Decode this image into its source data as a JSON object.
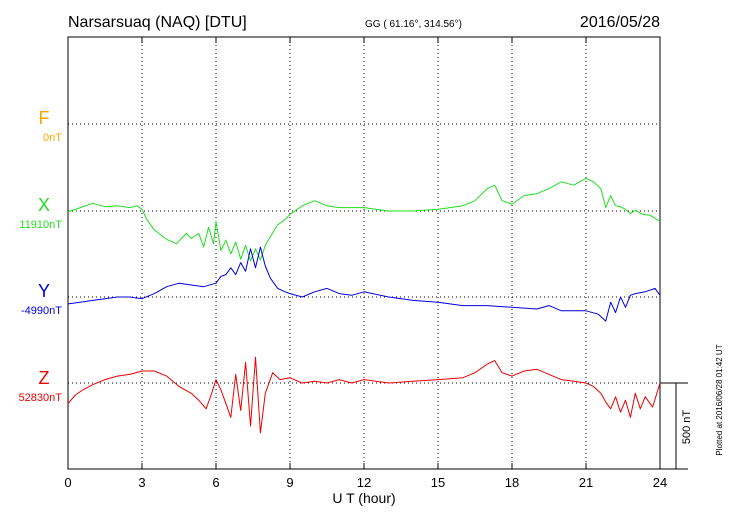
{
  "header": {
    "station": "Narsarsuaq (NAQ)  [DTU]",
    "coords": "GG ( 61.16°, 314.56°)",
    "date": "2016/05/28"
  },
  "plotted_note": "Plotted at 2016/06/28 01:42 UT",
  "scale_label": "500 nT",
  "chart_data": {
    "type": "line",
    "title": "Narsarsuaq (NAQ)  [DTU]",
    "xlabel": "U T (hour)",
    "ylabel": "",
    "xlim": [
      0,
      24
    ],
    "x_ticks": [
      0,
      3,
      6,
      9,
      12,
      15,
      18,
      21,
      24
    ],
    "x_tick_labels": [
      "0",
      "3",
      "6",
      "9",
      "12",
      "15",
      "18",
      "21",
      "24"
    ],
    "grid": true,
    "y_units": "nT offset from baseline (each panel scaled 500 nT per 74 px)",
    "series": [
      {
        "name": "F",
        "baseline_label": "0nT",
        "color": "#ffa500",
        "x": [],
        "values": []
      },
      {
        "name": "X",
        "baseline_label": "11910nT",
        "color": "#22dd22",
        "x": [
          0,
          0.5,
          1,
          1.5,
          2,
          2.5,
          2.8,
          3,
          3.2,
          3.5,
          4,
          4.4,
          4.8,
          5,
          5.3,
          5.5,
          5.7,
          5.9,
          6,
          6.2,
          6.4,
          6.6,
          6.8,
          7,
          7.2,
          7.4,
          7.6,
          7.8,
          8,
          8.2,
          8.5,
          8.8,
          9,
          9.5,
          10,
          10.5,
          11,
          12,
          13,
          14,
          15,
          15.5,
          16,
          16.5,
          17,
          17.3,
          17.6,
          18,
          18.5,
          19,
          19.5,
          20,
          20.5,
          21,
          21.3,
          21.6,
          21.8,
          22,
          22.2,
          22.4,
          22.6,
          22.8,
          23,
          23.3,
          23.6,
          24
        ],
        "values": [
          -5,
          20,
          45,
          25,
          30,
          20,
          30,
          10,
          -50,
          -110,
          -165,
          -190,
          -130,
          -160,
          -130,
          -210,
          -95,
          -190,
          -60,
          -230,
          -170,
          -250,
          -180,
          -280,
          -200,
          -290,
          -220,
          -285,
          -200,
          -150,
          -80,
          -50,
          -20,
          30,
          60,
          30,
          20,
          20,
          0,
          0,
          10,
          20,
          30,
          60,
          130,
          150,
          60,
          40,
          90,
          100,
          130,
          170,
          150,
          190,
          170,
          130,
          20,
          90,
          30,
          25,
          10,
          -15,
          5,
          -20,
          -25,
          -60
        ]
      },
      {
        "name": "Y",
        "baseline_label": "-4990nT",
        "color": "#0000dd",
        "x": [
          0,
          0.5,
          1,
          1.5,
          2,
          2.5,
          3,
          3.5,
          4,
          4.5,
          5,
          5.5,
          6,
          6.2,
          6.4,
          6.6,
          6.8,
          7,
          7.2,
          7.4,
          7.6,
          7.8,
          8,
          8.2,
          8.5,
          8.8,
          9,
          9.5,
          10,
          10.5,
          11,
          11.5,
          12,
          13,
          14,
          15,
          16,
          17,
          18,
          19,
          19.5,
          20,
          21,
          21.5,
          21.8,
          22,
          22.2,
          22.4,
          22.6,
          22.8,
          23,
          23.4,
          23.8,
          24
        ],
        "values": [
          -40,
          -30,
          -20,
          -10,
          0,
          0,
          -10,
          20,
          60,
          80,
          70,
          60,
          80,
          120,
          130,
          170,
          130,
          200,
          150,
          280,
          170,
          290,
          180,
          110,
          50,
          30,
          20,
          0,
          30,
          50,
          20,
          10,
          30,
          0,
          -20,
          -30,
          -50,
          -50,
          -60,
          -70,
          -50,
          -80,
          -80,
          -100,
          -140,
          -30,
          -90,
          0,
          -60,
          10,
          20,
          30,
          50,
          10
        ]
      },
      {
        "name": "Z",
        "baseline_label": "52830nT",
        "color": "#ee0000",
        "x": [
          0,
          0.3,
          0.6,
          1,
          1.5,
          2,
          2.5,
          3,
          3.5,
          4,
          4.5,
          5,
          5.3,
          5.6,
          5.8,
          6,
          6.2,
          6.4,
          6.6,
          6.8,
          7,
          7.2,
          7.4,
          7.6,
          7.8,
          8,
          8.3,
          8.6,
          9,
          9.5,
          10,
          10.5,
          11,
          11.5,
          12,
          13,
          14,
          15,
          16,
          16.5,
          17,
          17.3,
          17.6,
          18,
          18.5,
          19,
          19.5,
          20,
          20.5,
          21,
          21.3,
          21.6,
          21.8,
          22,
          22.2,
          22.4,
          22.6,
          22.8,
          23,
          23.2,
          23.4,
          23.7,
          24
        ],
        "values": [
          -120,
          -70,
          -40,
          -10,
          20,
          40,
          50,
          70,
          70,
          40,
          -20,
          -60,
          -100,
          -150,
          -70,
          20,
          -40,
          -120,
          -200,
          50,
          -160,
          120,
          -250,
          150,
          -290,
          -60,
          60,
          20,
          30,
          0,
          10,
          0,
          20,
          0,
          20,
          0,
          10,
          20,
          30,
          60,
          110,
          130,
          60,
          40,
          70,
          80,
          50,
          20,
          10,
          0,
          -20,
          -60,
          -110,
          -150,
          -80,
          -170,
          -100,
          -200,
          -60,
          -150,
          -80,
          -140,
          0
        ]
      }
    ]
  }
}
